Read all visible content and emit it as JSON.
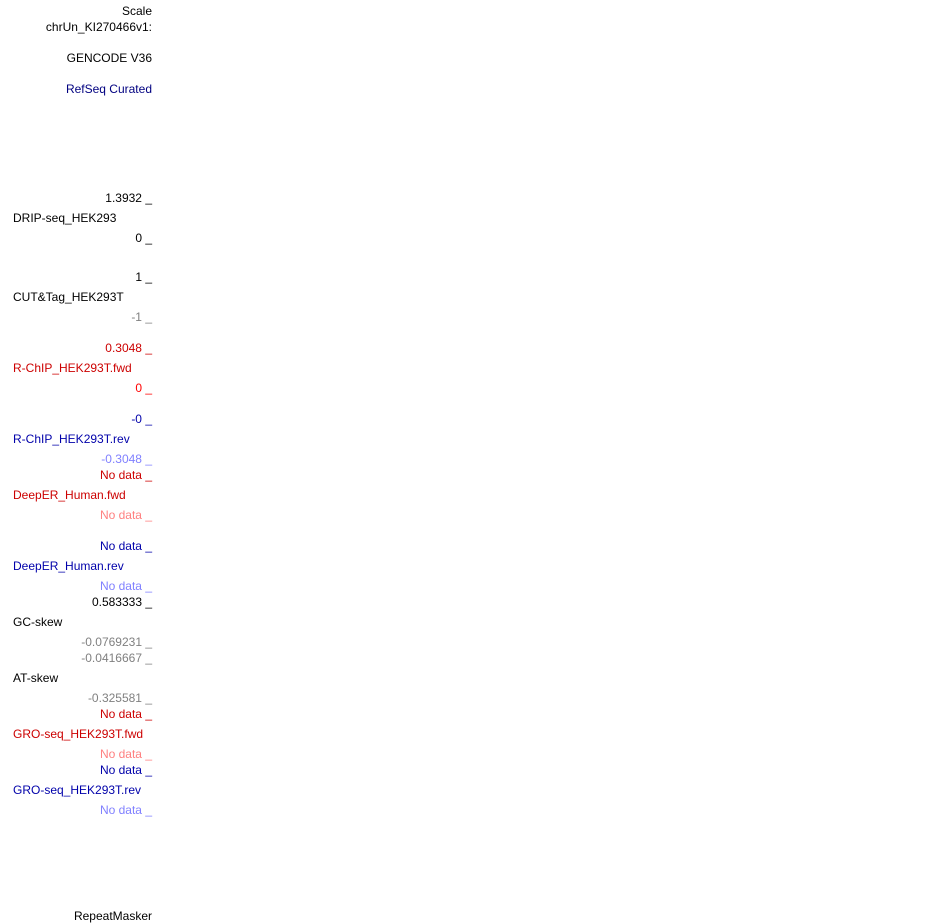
{
  "colors": {
    "black": "#000000",
    "gray": "#808080",
    "red": "#ff0000",
    "red_dark": "#cc0000",
    "red_light": "#ff8080",
    "navy": "#000080",
    "blue_dark": "#0000aa",
    "blue_light": "#8080ff"
  },
  "labels": {
    "scale": "Scale",
    "chrom": "chrUn_KI270466v1:",
    "gencode": "GENCODE V36",
    "refseq": "RefSeq Curated",
    "repeatmasker": "RepeatMasker"
  },
  "tracks": {
    "drip": {
      "max": "1.3932 _",
      "name": "DRIP-seq_HEK293",
      "min": "0 _"
    },
    "cuttag": {
      "max": "1 _",
      "name": "CUT&Tag_HEK293T",
      "min": "-1 _"
    },
    "rchip_fwd": {
      "max": "0.3048 _",
      "name": "R-ChIP_HEK293T.fwd",
      "min": "0 _"
    },
    "rchip_rev": {
      "max": "-0 _",
      "name": "R-ChIP_HEK293T.rev",
      "min": "-0.3048 _"
    },
    "deeper_fwd": {
      "max": "No data _",
      "name": "DeepER_Human.fwd",
      "min": "No data _"
    },
    "deeper_rev": {
      "max": "No data _",
      "name": "DeepER_Human.rev",
      "min": "No data _"
    },
    "gcskew": {
      "max": "0.583333 _",
      "name": "GC-skew",
      "min": "-0.0769231 _"
    },
    "atskew": {
      "max": "-0.0416667 _",
      "name": "AT-skew",
      "min": "-0.325581 _"
    },
    "gro_fwd": {
      "max": "No data _",
      "name": "GRO-seq_HEK293T.fwd",
      "min": "No data _"
    },
    "gro_rev": {
      "max": "No data _",
      "name": "GRO-seq_HEK293T.rev",
      "min": "No data _"
    }
  }
}
